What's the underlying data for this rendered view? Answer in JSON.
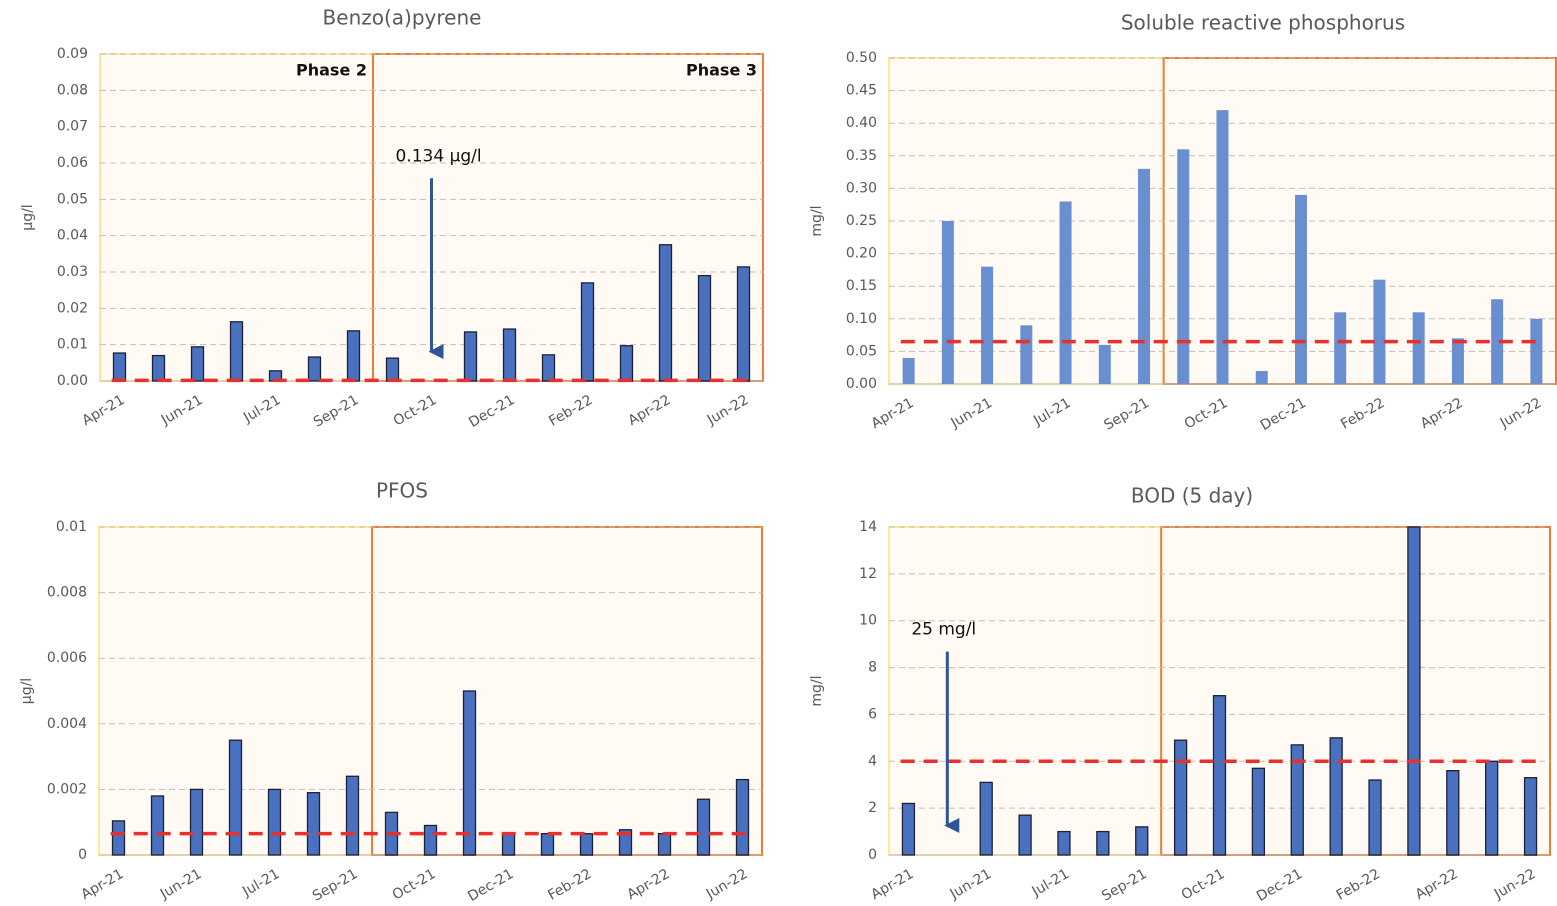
{
  "chart_data": [
    {
      "type": "bar",
      "title": "Benzo(a)pyrene",
      "ylabel": "µg/l",
      "categories": [
        "Apr-21",
        null,
        "Jun-21",
        null,
        "Jul-21",
        null,
        "Sep-21",
        null,
        "Oct-21",
        null,
        "Dec-21",
        null,
        "Feb-22",
        null,
        "Apr-22",
        null,
        "Jun-22"
      ],
      "values": [
        0.0077,
        0.007,
        0.0094,
        0.0163,
        0.0028,
        0.0066,
        0.0138,
        0.0063,
        null,
        0.0135,
        0.0143,
        0.0072,
        0.027,
        0.0097,
        0.0375,
        0.029,
        0.0314
      ],
      "color": "#4a70c0",
      "edgecolor": "#1c2233",
      "ylim": [
        0,
        0.09
      ],
      "yticks": [
        {
          "value": 0,
          "label": "0.00"
        },
        0.01,
        0.02,
        0.03,
        0.04,
        0.05,
        0.06,
        0.07,
        0.08,
        0.09
      ],
      "grid": true,
      "threshold": 0.00017,
      "threshold_color": "#e8302e",
      "phases": [
        {
          "label": "Phase 2",
          "from": 0,
          "to": 6,
          "color": "#ffe699"
        },
        {
          "label": "Phase 3",
          "from": 7,
          "to": 16,
          "color": "#ed7d31"
        }
      ],
      "annotations": [
        {
          "text": "0.134 µg/l",
          "at": 8
        }
      ]
    },
    {
      "type": "bar",
      "title": "Soluble reactive phosphorus",
      "ylabel": "mg/l",
      "categories": [
        "Apr-21",
        null,
        "Jun-21",
        null,
        "Jul-21",
        null,
        "Sep-21",
        null,
        "Oct-21",
        null,
        "Dec-21",
        null,
        "Feb-22",
        null,
        "Apr-22",
        null,
        "Jun-22"
      ],
      "values": [
        0.04,
        0.25,
        0.18,
        0.09,
        0.28,
        0.06,
        0.33,
        0.36,
        0.42,
        0.02,
        0.29,
        0.11,
        0.16,
        0.11,
        0.07,
        0.13,
        0.1
      ],
      "color": "#6a8fd0",
      "edgecolor": null,
      "ylim": [
        0,
        0.5
      ],
      "yticks": [
        {
          "value": 0,
          "label": "0.00"
        },
        0.05,
        {
          "value": 0.1,
          "label": "0.10"
        },
        0.15,
        {
          "value": 0.2,
          "label": "0.20"
        },
        0.25,
        {
          "value": 0.3,
          "label": "0.30"
        },
        0.35,
        {
          "value": 0.4,
          "label": "0.40"
        },
        0.45,
        {
          "value": 0.5,
          "label": "0.50"
        }
      ],
      "grid": true,
      "threshold": 0.065,
      "threshold_color": "#e8302e",
      "phases": [
        {
          "from": 0,
          "to": 6,
          "color": "#ffe699"
        },
        {
          "from": 7,
          "to": 16,
          "color": "#ed7d31"
        }
      ]
    },
    {
      "type": "bar",
      "title": "PFOS",
      "ylabel": "µg/l",
      "categories": [
        "Apr-21",
        null,
        "Jun-21",
        null,
        "Jul-21",
        null,
        "Sep-21",
        null,
        "Oct-21",
        null,
        "Dec-21",
        null,
        "Feb-22",
        null,
        "Apr-22",
        null,
        "Jun-22"
      ],
      "values": [
        0.00104,
        0.0018,
        0.002,
        0.0035,
        0.002,
        0.0019,
        0.0024,
        0.0013,
        0.0009,
        0.005,
        0.00065,
        0.00065,
        0.00065,
        0.00077,
        0.00065,
        0.0017,
        0.0023
      ],
      "color": "#4a70c0",
      "edgecolor": "#1c2233",
      "ylim": [
        0,
        0.01
      ],
      "yticks": [
        0,
        0.002,
        0.004,
        0.006,
        0.008,
        0.01
      ],
      "grid": true,
      "threshold": 0.00065,
      "threshold_color": "#e8302e",
      "phases": [
        {
          "from": 0,
          "to": 6,
          "color": "#ffe699"
        },
        {
          "from": 7,
          "to": 16,
          "color": "#ed7d31"
        }
      ]
    },
    {
      "type": "bar",
      "title": "BOD (5 day)",
      "ylabel": "mg/l",
      "categories": [
        "Apr-21",
        null,
        "Jun-21",
        null,
        "Jul-21",
        null,
        "Sep-21",
        null,
        "Oct-21",
        null,
        "Dec-21",
        null,
        "Feb-22",
        null,
        "Apr-22",
        null,
        "Jun-22"
      ],
      "values": [
        2.2,
        null,
        3.1,
        1.7,
        1.0,
        1.0,
        1.2,
        4.9,
        6.8,
        3.7,
        4.7,
        5.0,
        3.2,
        14,
        3.6,
        4.0,
        3.3
      ],
      "color": "#4a70c0",
      "edgecolor": "#1c2233",
      "ylim": [
        0,
        14
      ],
      "yticks": [
        0,
        2,
        4,
        6,
        8,
        10,
        12,
        14
      ],
      "grid": true,
      "threshold": 4,
      "threshold_color": "#e8302e",
      "phases": [
        {
          "from": 0,
          "to": 6,
          "color": "#ffe699"
        },
        {
          "from": 7,
          "to": 16,
          "color": "#ed7d31"
        }
      ],
      "annotations": [
        {
          "text": "25 mg/l",
          "at": 1
        }
      ]
    }
  ]
}
